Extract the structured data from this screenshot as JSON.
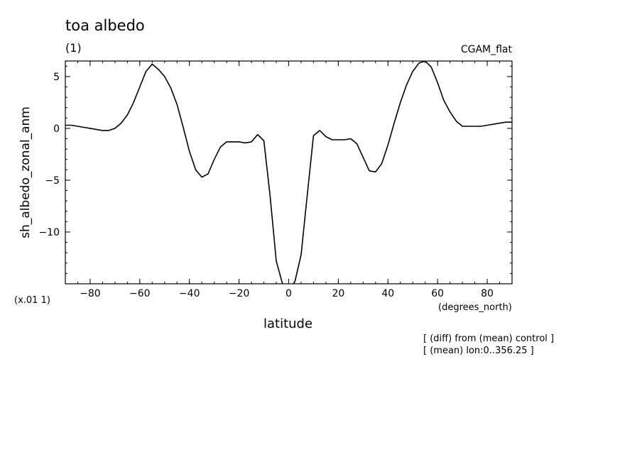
{
  "header": {
    "title": "toa albedo",
    "subtitle": "(1)",
    "dataset": "CGAM_flat"
  },
  "footer": {
    "multiplier": "(x.01 1)",
    "x_units": "(degrees_north)",
    "note_lines": [
      "[ (diff) from (mean) control ]",
      "[ (mean) lon:0..356.25 ]"
    ]
  },
  "chart_data": {
    "type": "line",
    "title": "toa albedo",
    "xlabel": "latitude",
    "ylabel": "sh_albedo_zonal_anm",
    "xlim": [
      -90,
      90
    ],
    "ylim": [
      -15,
      6.5
    ],
    "x_ticks": [
      -80,
      -60,
      -40,
      -20,
      0,
      20,
      40,
      60,
      80
    ],
    "x_tick_labels": [
      "−80",
      "−60",
      "−40",
      "−20",
      "0",
      "20",
      "40",
      "60",
      "80"
    ],
    "y_ticks": [
      5,
      0,
      -5,
      -10
    ],
    "y_tick_labels": [
      "5",
      "0",
      "−5",
      "−10"
    ],
    "grid": false,
    "series": [
      {
        "values": [
          [
            -90,
            0.3
          ],
          [
            -87.5,
            0.3
          ],
          [
            -85,
            0.2
          ],
          [
            -82.5,
            0.1
          ],
          [
            -80,
            0.0
          ],
          [
            -77.5,
            -0.1
          ],
          [
            -75,
            -0.2
          ],
          [
            -72.5,
            -0.2
          ],
          [
            -70,
            0.0
          ],
          [
            -67.5,
            0.5
          ],
          [
            -65,
            1.3
          ],
          [
            -62.5,
            2.5
          ],
          [
            -60,
            4.0
          ],
          [
            -57.5,
            5.5
          ],
          [
            -55,
            6.2
          ],
          [
            -52.5,
            5.7
          ],
          [
            -50,
            5.0
          ],
          [
            -47.5,
            3.9
          ],
          [
            -45,
            2.3
          ],
          [
            -42.5,
            0.1
          ],
          [
            -40,
            -2.2
          ],
          [
            -37.5,
            -4.0
          ],
          [
            -35,
            -4.7
          ],
          [
            -32.5,
            -4.4
          ],
          [
            -30,
            -3.0
          ],
          [
            -27.5,
            -1.8
          ],
          [
            -25,
            -1.3
          ],
          [
            -22.5,
            -1.3
          ],
          [
            -20,
            -1.3
          ],
          [
            -17.5,
            -1.4
          ],
          [
            -15,
            -1.3
          ],
          [
            -12.5,
            -0.6
          ],
          [
            -10,
            -1.2
          ],
          [
            -7.5,
            -6.5
          ],
          [
            -5,
            -12.8
          ],
          [
            -2.5,
            -15.0
          ],
          [
            0,
            -15.5
          ],
          [
            2.5,
            -14.8
          ],
          [
            5,
            -12.2
          ],
          [
            7.5,
            -6.4
          ],
          [
            10,
            -0.7
          ],
          [
            12.5,
            -0.2
          ],
          [
            15,
            -0.8
          ],
          [
            17.5,
            -1.1
          ],
          [
            20,
            -1.1
          ],
          [
            22.5,
            -1.1
          ],
          [
            25,
            -1.0
          ],
          [
            27.5,
            -1.5
          ],
          [
            30,
            -2.8
          ],
          [
            32.5,
            -4.1
          ],
          [
            35,
            -4.2
          ],
          [
            37.5,
            -3.4
          ],
          [
            40,
            -1.6
          ],
          [
            42.5,
            0.5
          ],
          [
            45,
            2.5
          ],
          [
            47.5,
            4.2
          ],
          [
            50,
            5.5
          ],
          [
            52.5,
            6.3
          ],
          [
            55,
            6.5
          ],
          [
            57.5,
            5.9
          ],
          [
            60,
            4.4
          ],
          [
            62.5,
            2.7
          ],
          [
            65,
            1.6
          ],
          [
            67.5,
            0.7
          ],
          [
            70,
            0.2
          ],
          [
            72.5,
            0.2
          ],
          [
            75,
            0.2
          ],
          [
            77.5,
            0.2
          ],
          [
            80,
            0.3
          ],
          [
            82.5,
            0.4
          ],
          [
            85,
            0.5
          ],
          [
            87.5,
            0.6
          ],
          [
            90,
            0.6
          ]
        ]
      }
    ]
  }
}
